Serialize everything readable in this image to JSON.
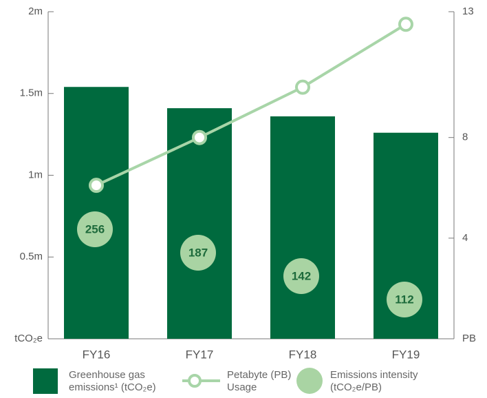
{
  "chart_data": {
    "type": "bar",
    "categories": [
      "FY16",
      "FY17",
      "FY18",
      "FY19"
    ],
    "series": [
      {
        "name": "Greenhouse gas emissions¹ (tCO₂e)",
        "type": "bar",
        "color": "#006a3e",
        "values": [
          1540000,
          1410000,
          1360000,
          1260000
        ]
      },
      {
        "name": "Petabyte (PB) Usage",
        "type": "line",
        "axis": "y2",
        "color": "#a8d5a8",
        "values": [
          6.1,
          8.0,
          10.0,
          12.5
        ]
      },
      {
        "name": "Emissions intensity (tCO₂e/PB)",
        "type": "bubble",
        "color": "#a9d4a3",
        "values": [
          256,
          187,
          142,
          112
        ]
      }
    ],
    "ylim": [
      0,
      2000000
    ],
    "yticks": [
      {
        "value": 0,
        "label": "tCO₂e"
      },
      {
        "value": 500000,
        "label": "0.5m"
      },
      {
        "value": 1000000,
        "label": "1m"
      },
      {
        "value": 1500000,
        "label": "1.5m"
      },
      {
        "value": 2000000,
        "label": "2m"
      }
    ],
    "y2lim": [
      0,
      13
    ],
    "y2ticks": [
      {
        "value": 0,
        "label": "PB"
      },
      4,
      8,
      13
    ]
  }
}
